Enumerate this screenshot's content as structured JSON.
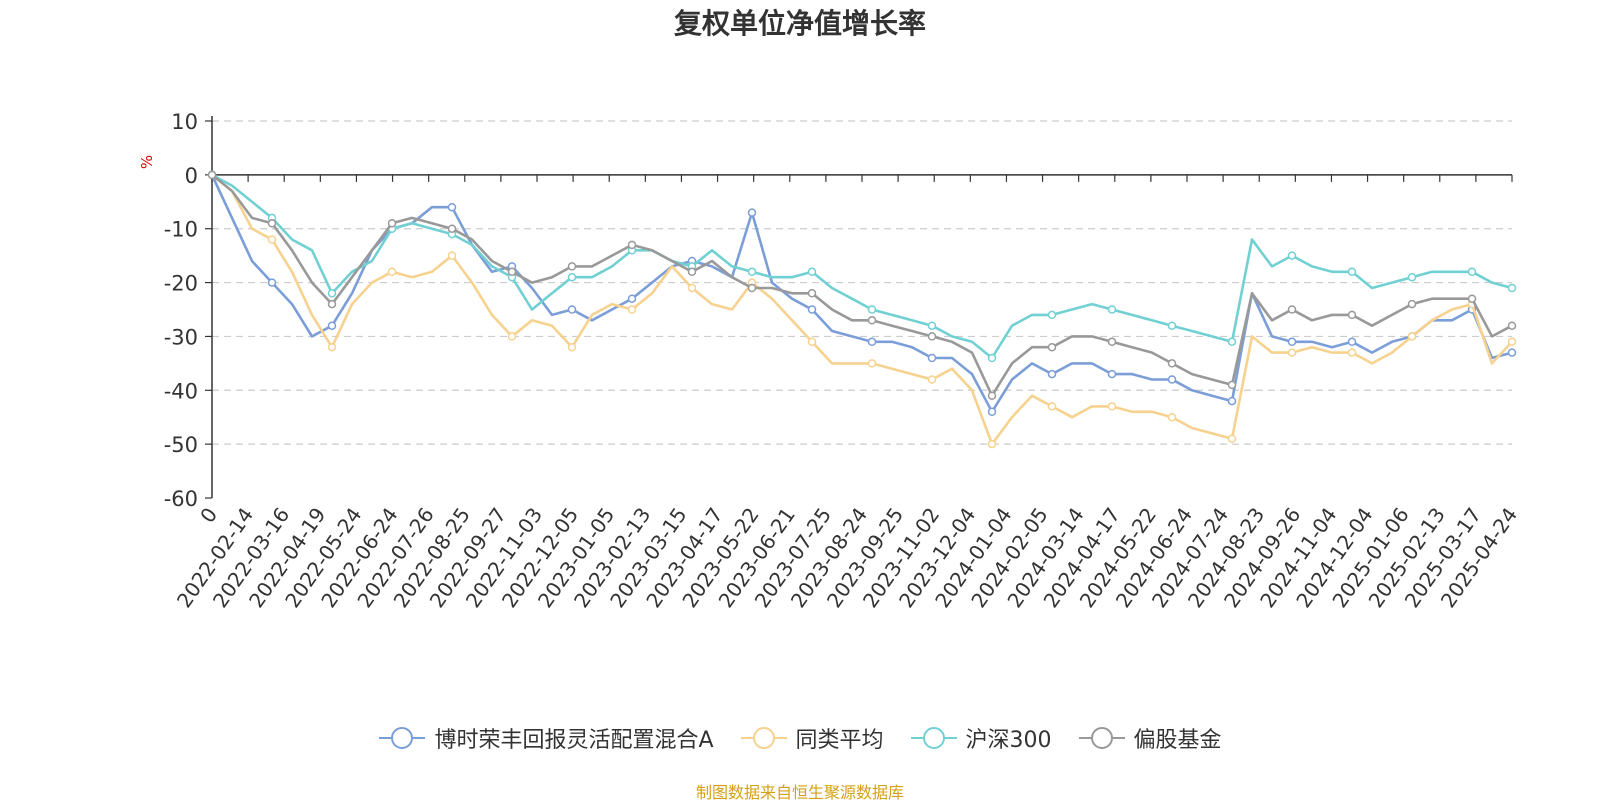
{
  "chart_data": {
    "type": "line",
    "title": "复权单位净值增长率",
    "ylabel": "%",
    "ylim": [
      -60,
      10
    ],
    "yticks": [
      10,
      0,
      -10,
      -20,
      -30,
      -40,
      -50,
      -60
    ],
    "grid": true,
    "legend_position": "bottom",
    "x_tick_labels": [
      "0",
      "2022-02-14",
      "2022-03-16",
      "2022-04-19",
      "2022-05-24",
      "2022-06-24",
      "2022-07-26",
      "2022-08-25",
      "2022-09-27",
      "2022-11-03",
      "2022-12-05",
      "2023-01-05",
      "2023-02-13",
      "2023-03-15",
      "2023-04-17",
      "2023-05-22",
      "2023-06-21",
      "2023-07-25",
      "2023-08-24",
      "2023-09-25",
      "2023-11-02",
      "2023-12-04",
      "2024-01-04",
      "2024-02-05",
      "2024-03-14",
      "2024-04-17",
      "2024-05-22",
      "2024-06-24",
      "2024-07-24",
      "2024-08-23",
      "2024-09-26",
      "2024-11-04",
      "2024-12-04",
      "2025-01-06",
      "2025-02-13",
      "2025-03-17",
      "2025-04-24"
    ],
    "series": [
      {
        "name": "博时荣丰回报灵活配置混合A",
        "color": "#7b9ed8",
        "values": [
          0,
          -8,
          -16,
          -20,
          -24,
          -30,
          -28,
          -22,
          -14,
          -10,
          -9,
          -6,
          -6,
          -13,
          -18,
          -17,
          -21,
          -26,
          -25,
          -27,
          -25,
          -23,
          -20,
          -17,
          -16,
          -17,
          -19,
          -7,
          -20,
          -23,
          -25,
          -29,
          -30,
          -31,
          -31,
          -32,
          -34,
          -34,
          -37,
          -44,
          -38,
          -35,
          -37,
          -35,
          -35,
          -37,
          -37,
          -38,
          -38,
          -40,
          -41,
          -42,
          -22,
          -30,
          -31,
          -31,
          -32,
          -31,
          -33,
          -31,
          -30,
          -27,
          -27,
          -25,
          -34,
          -33
        ]
      },
      {
        "name": "同类平均",
        "color": "#f6d28e",
        "values": [
          0,
          -3,
          -10,
          -12,
          -18,
          -26,
          -32,
          -24,
          -20,
          -18,
          -19,
          -18,
          -15,
          -20,
          -26,
          -30,
          -27,
          -28,
          -32,
          -26,
          -24,
          -25,
          -22,
          -17,
          -21,
          -24,
          -25,
          -20,
          -23,
          -27,
          -31,
          -35,
          -35,
          -35,
          -36,
          -37,
          -38,
          -36,
          -40,
          -50,
          -45,
          -41,
          -43,
          -45,
          -43,
          -43,
          -44,
          -44,
          -45,
          -47,
          -48,
          -49,
          -30,
          -33,
          -33,
          -32,
          -33,
          -33,
          -35,
          -33,
          -30,
          -27,
          -25,
          -24,
          -35,
          -31
        ]
      },
      {
        "name": "沪深300",
        "color": "#71d0d2",
        "values": [
          0,
          -2,
          -5,
          -8,
          -12,
          -14,
          -22,
          -18,
          -16,
          -10,
          -9,
          -10,
          -11,
          -13,
          -17,
          -19,
          -25,
          -22,
          -19,
          -19,
          -17,
          -14,
          -14,
          -16,
          -17,
          -14,
          -17,
          -18,
          -19,
          -19,
          -18,
          -21,
          -23,
          -25,
          -26,
          -27,
          -28,
          -30,
          -31,
          -34,
          -28,
          -26,
          -26,
          -25,
          -24,
          -25,
          -26,
          -27,
          -28,
          -29,
          -30,
          -31,
          -12,
          -17,
          -15,
          -17,
          -18,
          -18,
          -21,
          -20,
          -19,
          -18,
          -18,
          -18,
          -20,
          -21
        ]
      },
      {
        "name": "偏股基金",
        "color": "#999999",
        "values": [
          0,
          -3,
          -8,
          -9,
          -14,
          -20,
          -24,
          -19,
          -14,
          -9,
          -8,
          -9,
          -10,
          -12,
          -16,
          -18,
          -20,
          -19,
          -17,
          -17,
          -15,
          -13,
          -14,
          -16,
          -18,
          -16,
          -19,
          -21,
          -21,
          -22,
          -22,
          -25,
          -27,
          -27,
          -28,
          -29,
          -30,
          -31,
          -33,
          -41,
          -35,
          -32,
          -32,
          -30,
          -30,
          -31,
          -32,
          -33,
          -35,
          -37,
          -38,
          -39,
          -22,
          -27,
          -25,
          -27,
          -26,
          -26,
          -28,
          -26,
          -24,
          -23,
          -23,
          -23,
          -30,
          -28
        ]
      }
    ]
  },
  "source_note": "制图数据来自恒生聚源数据库"
}
